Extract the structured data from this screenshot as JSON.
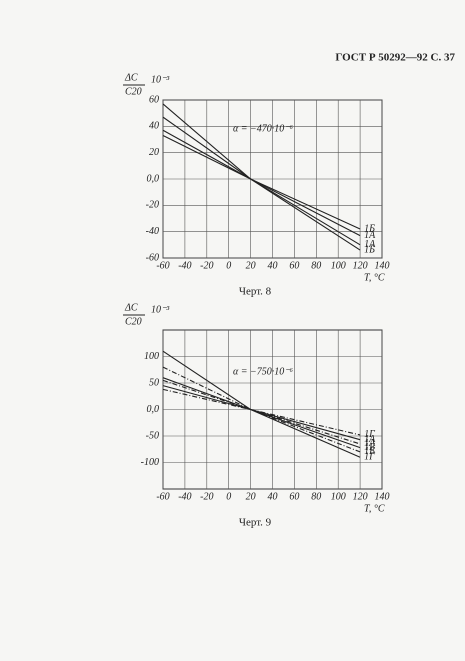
{
  "header": "ГОСТ Р 50292—92 С. 37",
  "chart_data": [
    {
      "type": "line",
      "caption": "Черт. 8",
      "ylabel": "ΔC",
      "ylabel_denominator": "C20",
      "yunit": "10⁻³",
      "xlabel": "T, °C",
      "annotation": "α = −470·10⁻⁶",
      "x": [
        -60,
        20,
        120
      ],
      "xlim": [
        -60,
        140
      ],
      "xticks": [
        -60,
        -40,
        -20,
        0,
        20,
        40,
        60,
        80,
        100,
        120,
        140
      ],
      "ylim": [
        -60,
        60
      ],
      "yticks": [
        -60,
        -40,
        -20,
        {
          "value": 0,
          "label": "0,0"
        },
        20,
        40,
        60
      ],
      "grid": true,
      "series": [
        {
          "name": "1Б",
          "color": "#222222",
          "values": [
            57,
            0,
            -54
          ]
        },
        {
          "name": "1А",
          "color": "#222222",
          "values": [
            47,
            0,
            -50
          ]
        },
        {
          "name": "1А",
          "color": "#222222",
          "values": [
            37,
            0,
            -43
          ]
        },
        {
          "name": "1Б",
          "color": "#222222",
          "values": [
            33,
            0,
            -38
          ]
        }
      ]
    },
    {
      "type": "line",
      "caption": "Черт. 9",
      "ylabel": "ΔC",
      "ylabel_denominator": "C20",
      "yunit": "10⁻³",
      "xlabel": "T, °C",
      "annotation": "α = −750·10⁻⁶",
      "x": [
        -60,
        20,
        120
      ],
      "xlim": [
        -60,
        140
      ],
      "xticks": [
        -60,
        -40,
        -20,
        0,
        20,
        40,
        60,
        80,
        100,
        120,
        140
      ],
      "ylim": [
        -150,
        150
      ],
      "yticks": [
        -100,
        -50,
        {
          "value": 0,
          "label": "0,0"
        },
        50,
        100
      ],
      "grid": true,
      "series": [
        {
          "name": "1Г",
          "color": "#222222",
          "values": [
            110,
            0,
            -90
          ]
        },
        {
          "name": "1Б",
          "color": "#222222",
          "values": [
            80,
            0,
            -80
          ],
          "dash": true
        },
        {
          "name": "1Б",
          "color": "#222222",
          "values": [
            60,
            0,
            -72
          ]
        },
        {
          "name": "1А",
          "color": "#222222",
          "values": [
            55,
            0,
            -65
          ],
          "dash": true
        },
        {
          "name": "1А",
          "color": "#222222",
          "values": [
            45,
            0,
            -57
          ]
        },
        {
          "name": "1Г",
          "color": "#222222",
          "values": [
            38,
            0,
            -48
          ],
          "dash": true
        }
      ]
    }
  ]
}
